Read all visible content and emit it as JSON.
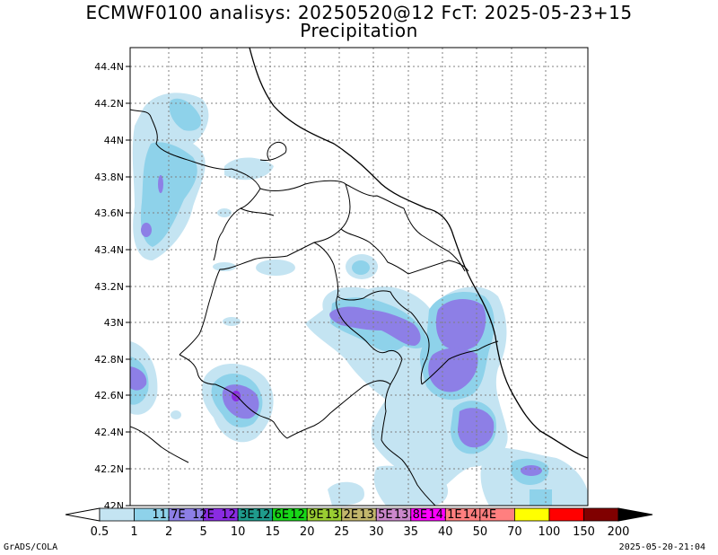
{
  "title": {
    "line1": "ECMWF0100 analisys: 20250520@12 FcT: 2025-05-23+15",
    "line2": "Precipitation"
  },
  "y_axis": {
    "labels": [
      "44.4N",
      "44.2N",
      "44N",
      "43.8N",
      "43.6N",
      "43.4N",
      "43.2N",
      "43N",
      "42.8N",
      "42.6N",
      "42.4N",
      "42.2N",
      "42N"
    ],
    "values": [
      44.4,
      44.2,
      44.0,
      43.8,
      43.6,
      43.4,
      43.2,
      43.0,
      42.8,
      42.6,
      42.4,
      42.2,
      42.0
    ]
  },
  "x_axis": {
    "lon_labels": [
      "11.7E",
      "12E",
      "12.3E",
      "12.6E",
      "12.9E",
      "13.2E",
      "13.5E",
      "13.8E",
      "14.1E",
      "14.4E"
    ],
    "values": [
      11.7,
      12.0,
      12.3,
      12.6,
      12.9,
      13.2,
      13.5,
      13.8,
      14.1,
      14.4
    ]
  },
  "colorbar": {
    "thresholds": [
      "0.5",
      "1",
      "2",
      "5",
      "10",
      "15",
      "20",
      "25",
      "30",
      "35",
      "40",
      "50",
      "70",
      "100",
      "150",
      "200"
    ],
    "colors": [
      "#ffffff",
      "#c4e4f2",
      "#8ed2ea",
      "#8d7fe6",
      "#8a2be2",
      "#1f9b8c",
      "#18d818",
      "#9acd32",
      "#c2b66c",
      "#cc88cc",
      "#ff00ff",
      "#ff7f7f",
      "#ff7f7f",
      "#ffff00",
      "#ff0000",
      "#800000"
    ]
  },
  "colors": {
    "light_blue": "#c4e4f2",
    "medium_blue": "#8ed2ea",
    "purple": "#8d7fe6",
    "dark_purple": "#8a2be2",
    "grid": "#808080"
  },
  "footer": {
    "left": "GrADS/COLA",
    "right": "2025-05-20-21:04"
  }
}
